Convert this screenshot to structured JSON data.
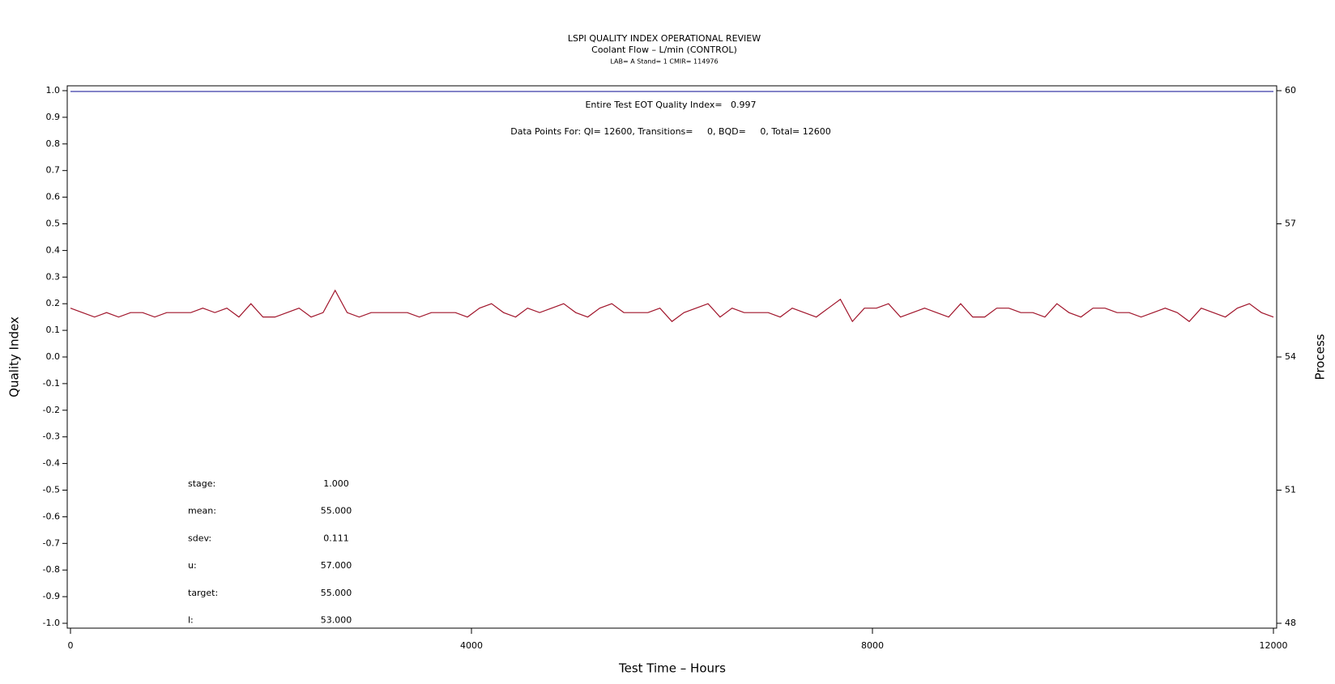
{
  "chart_data": {
    "type": "line",
    "title": "LSPI QUALITY INDEX OPERATIONAL REVIEW",
    "subtitle": "Coolant Flow – L/min (CONTROL)",
    "subtitle2": "LAB= A Stand= 1 CMIR= 114976",
    "annotations": [
      "Entire Test EOT Quality Index=   0.997",
      "Data Points For: QI= 12600, Transitions=     0, BQD=     0, Total= 12600"
    ],
    "stats": [
      {
        "label": "stage:",
        "value": "1.000"
      },
      {
        "label": "mean:",
        "value": "55.000"
      },
      {
        "label": "sdev:",
        "value": "0.111"
      },
      {
        "label": "u:",
        "value": "57.000"
      },
      {
        "label": "target:",
        "value": "55.000"
      },
      {
        "label": "l:",
        "value": "53.000"
      }
    ],
    "x_label": "Test Time – Hours",
    "y_label": "Quality Index",
    "y2_label": "Process",
    "xlim": [
      0,
      12000
    ],
    "xticks": [
      0,
      4000,
      8000,
      12000
    ],
    "ylim": [
      -1,
      1
    ],
    "yticks": [
      {
        "value": 1,
        "label": "1.0"
      },
      0.9,
      0.8,
      0.7,
      0.6,
      0.5,
      0.4,
      0.3,
      0.2,
      0.1,
      {
        "value": 0,
        "label": "0.0"
      },
      -0.1,
      -0.2,
      -0.3,
      -0.4,
      -0.5,
      -0.6,
      -0.7,
      -0.8,
      -0.9,
      {
        "value": -1,
        "label": "-1.0"
      }
    ],
    "y2lim": [
      48,
      60
    ],
    "y2ticks": [
      48,
      51,
      54,
      57,
      60
    ],
    "series": [
      {
        "name": "Quality Index",
        "color": "#3b3ba8",
        "axis": "y",
        "x": [
          0,
          12000
        ],
        "values": [
          0.997,
          0.997
        ]
      },
      {
        "name": "Process",
        "color": "#a0142a",
        "axis": "y2",
        "x": [
          0,
          120,
          240,
          360,
          480,
          600,
          720,
          840,
          960,
          1080,
          1200,
          1320,
          1440,
          1560,
          1680,
          1800,
          1920,
          2040,
          2160,
          2280,
          2400,
          2520,
          2640,
          2760,
          2880,
          3000,
          3120,
          3240,
          3360,
          3480,
          3600,
          3720,
          3840,
          3960,
          4080,
          4200,
          4320,
          4440,
          4560,
          4680,
          4800,
          4920,
          5040,
          5160,
          5280,
          5400,
          5520,
          5640,
          5760,
          5880,
          6000,
          6120,
          6240,
          6360,
          6480,
          6600,
          6720,
          6840,
          6960,
          7080,
          7200,
          7320,
          7440,
          7560,
          7680,
          7800,
          7920,
          8040,
          8160,
          8280,
          8400,
          8520,
          8640,
          8760,
          8880,
          9000,
          9120,
          9240,
          9360,
          9480,
          9600,
          9720,
          9840,
          9960,
          10080,
          10200,
          10320,
          10440,
          10560,
          10680,
          10800,
          10920,
          11040,
          11160,
          11280,
          11400,
          11520,
          11640,
          11760,
          11880,
          12000
        ],
        "values": [
          55.1,
          55.0,
          54.9,
          55.0,
          54.9,
          55.0,
          55.0,
          54.9,
          55.0,
          55.0,
          55.0,
          55.1,
          55.0,
          55.1,
          54.9,
          55.2,
          54.9,
          54.9,
          55.0,
          55.1,
          54.9,
          55.0,
          55.5,
          55.0,
          54.9,
          55.0,
          55.0,
          55.0,
          55.0,
          54.9,
          55.0,
          55.0,
          55.0,
          54.9,
          55.1,
          55.2,
          55.0,
          54.9,
          55.1,
          55.0,
          55.1,
          55.2,
          55.0,
          54.9,
          55.1,
          55.2,
          55.0,
          55.0,
          55.0,
          55.1,
          54.8,
          55.0,
          55.1,
          55.2,
          54.9,
          55.1,
          55.0,
          55.0,
          55.0,
          54.9,
          55.1,
          55.0,
          54.9,
          55.1,
          55.3,
          54.8,
          55.1,
          55.1,
          55.2,
          54.9,
          55.0,
          55.1,
          55.0,
          54.9,
          55.2,
          54.9,
          54.9,
          55.1,
          55.1,
          55.0,
          55.0,
          54.9,
          55.2,
          55.0,
          54.9,
          55.1,
          55.1,
          55.0,
          55.0,
          54.9,
          55.0,
          55.1,
          55.0,
          54.8,
          55.1,
          55.0,
          54.9,
          55.1,
          55.2,
          55.0,
          54.9
        ]
      }
    ]
  }
}
